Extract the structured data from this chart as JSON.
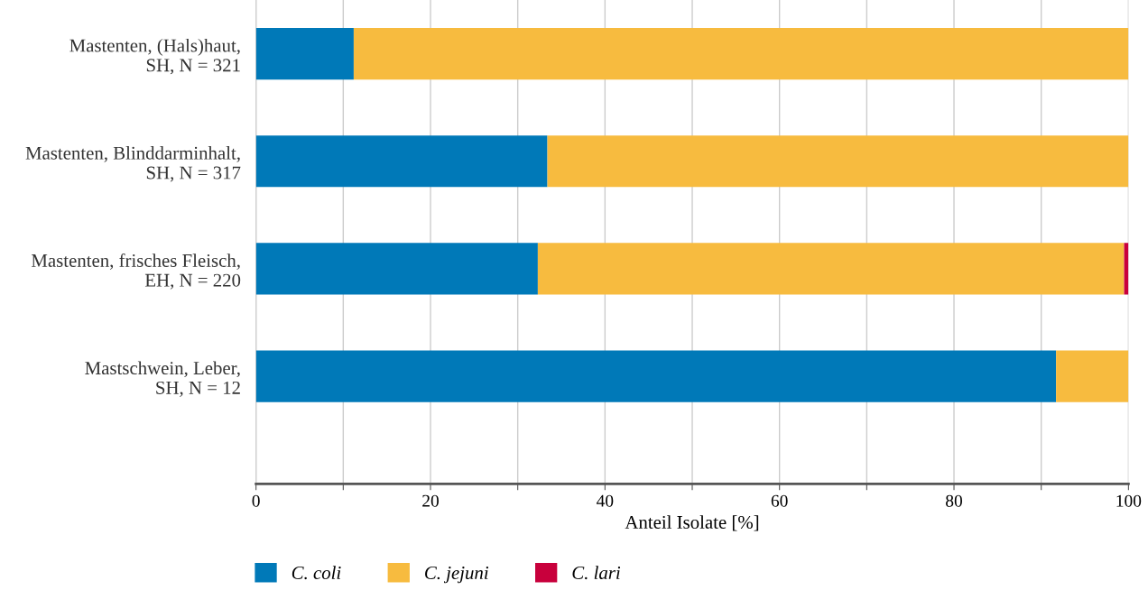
{
  "chart_data": {
    "type": "bar",
    "orientation": "horizontal",
    "stacked": true,
    "categories": [
      "Mastenten, (Hals)haut,\nSH, N = 321",
      "Mastenten, Blinddarminhalt,\nSH, N = 317",
      "Mastenten, frisches Fleisch,\nEH, N = 220",
      "Mastschwein, Leber,\nSH, N = 12"
    ],
    "series": [
      {
        "name": "C. coli",
        "color": "#0079b8",
        "values": [
          11.2,
          33.4,
          32.3,
          91.7
        ]
      },
      {
        "name": "C. jejuni",
        "color": "#f7bb3f",
        "values": [
          88.8,
          66.6,
          67.2,
          8.3
        ]
      },
      {
        "name": "C. lari",
        "color": "#c8003c",
        "values": [
          null,
          null,
          0.5,
          null
        ]
      }
    ],
    "xlim": [
      0,
      100
    ],
    "xticks": [
      0,
      {
        "value": 10,
        "label": null
      },
      20,
      {
        "value": 30,
        "label": null
      },
      40,
      {
        "value": 50,
        "label": null
      },
      60,
      {
        "value": 70,
        "label": null
      },
      80,
      {
        "value": 90,
        "label": null
      },
      100
    ],
    "xlabel": "Anteil Isolate [%]",
    "grid": "x",
    "legend": "bottom"
  }
}
